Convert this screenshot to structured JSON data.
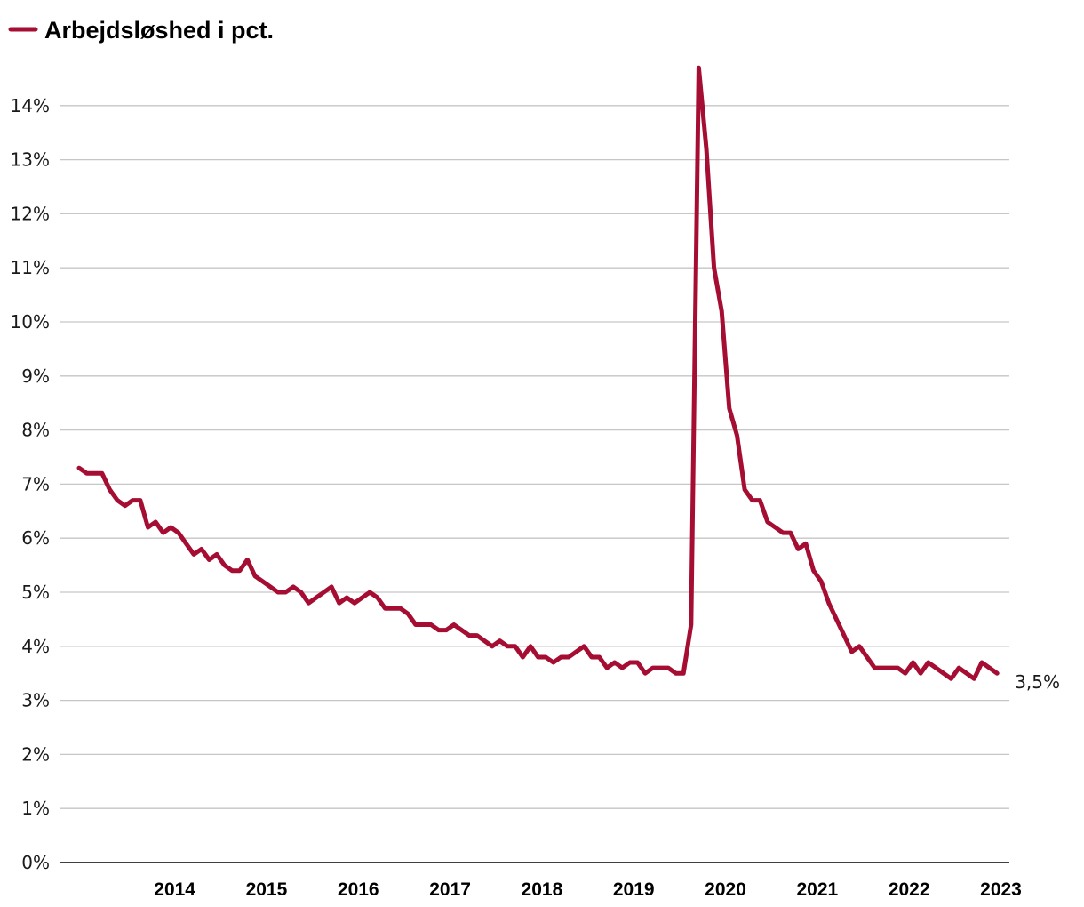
{
  "chart_data": {
    "type": "line",
    "title": "",
    "xlabel": "",
    "ylabel": "",
    "ylim": [
      0,
      14
    ],
    "x_start": "2013-06",
    "x_ticks": [
      "2014",
      "2015",
      "2016",
      "2017",
      "2018",
      "2019",
      "2020",
      "2021",
      "2022",
      "2023"
    ],
    "y_ticks": [
      "0%",
      "1%",
      "2%",
      "3%",
      "4%",
      "5%",
      "6%",
      "7%",
      "8%",
      "9%",
      "10%",
      "11%",
      "12%",
      "13%",
      "14%"
    ],
    "grid": true,
    "legend_position": "top-left",
    "series": [
      {
        "name": "Arbejdsløshed i pct.",
        "color": "#a50e32",
        "values": [
          7.3,
          7.2,
          7.2,
          7.2,
          6.9,
          6.7,
          6.6,
          6.7,
          6.7,
          6.2,
          6.3,
          6.1,
          6.2,
          6.1,
          5.9,
          5.7,
          5.8,
          5.6,
          5.7,
          5.5,
          5.4,
          5.4,
          5.6,
          5.3,
          5.2,
          5.1,
          5.0,
          5.0,
          5.1,
          5.0,
          4.8,
          4.9,
          5.0,
          5.1,
          4.8,
          4.9,
          4.8,
          4.9,
          5.0,
          4.9,
          4.7,
          4.7,
          4.7,
          4.6,
          4.4,
          4.4,
          4.4,
          4.3,
          4.3,
          4.4,
          4.3,
          4.2,
          4.2,
          4.1,
          4.0,
          4.1,
          4.0,
          4.0,
          3.8,
          4.0,
          3.8,
          3.8,
          3.7,
          3.8,
          3.8,
          3.9,
          4.0,
          3.8,
          3.8,
          3.6,
          3.7,
          3.6,
          3.7,
          3.7,
          3.5,
          3.6,
          3.6,
          3.6,
          3.5,
          3.5,
          4.4,
          14.7,
          13.2,
          11.0,
          10.2,
          8.4,
          7.9,
          6.9,
          6.7,
          6.7,
          6.3,
          6.2,
          6.1,
          6.1,
          5.8,
          5.9,
          5.4,
          5.2,
          4.8,
          4.5,
          4.2,
          3.9,
          4.0,
          3.8,
          3.6,
          3.6,
          3.6,
          3.6,
          3.5,
          3.7,
          3.5,
          3.7,
          3.6,
          3.5,
          3.4,
          3.6,
          3.5,
          3.4,
          3.7,
          3.6,
          3.5
        ]
      }
    ],
    "end_label": "3,5%"
  }
}
